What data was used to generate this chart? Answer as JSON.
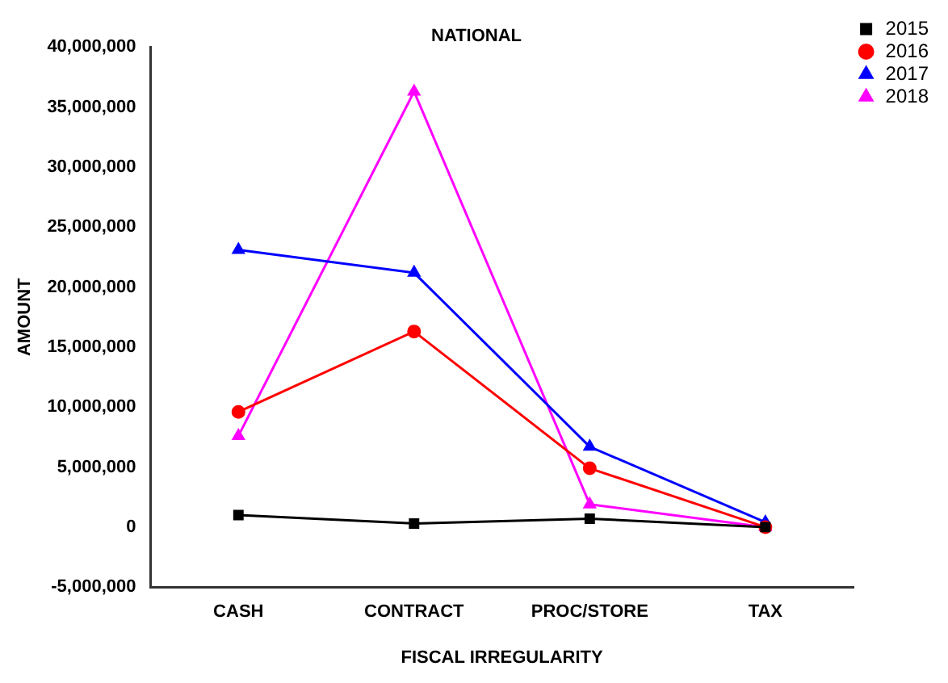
{
  "chart_data": {
    "type": "line",
    "title": "NATIONAL",
    "xlabel": "FISCAL IRREGULARITY",
    "ylabel": "AMOUNT",
    "categories": [
      "CASH",
      "CONTRACT",
      "PROC/STORE",
      "TAX"
    ],
    "series": [
      {
        "name": "2015",
        "color": "#000000",
        "marker": "square",
        "values": [
          1000000,
          300000,
          700000,
          0
        ]
      },
      {
        "name": "2016",
        "color": "#ff0000",
        "marker": "circle",
        "values": [
          9600000,
          16300000,
          4900000,
          0
        ]
      },
      {
        "name": "2017",
        "color": "#0000ff",
        "marker": "triangle",
        "values": [
          23100000,
          21200000,
          6700000,
          400000
        ]
      },
      {
        "name": "2018",
        "color": "#ff00ff",
        "marker": "triangle",
        "values": [
          7600000,
          36300000,
          1900000,
          0
        ]
      }
    ],
    "ylim": [
      -5000000,
      40000000
    ],
    "yticks": [
      {
        "value": -5000000,
        "label": "-5,000,000"
      },
      {
        "value": 0,
        "label": "0"
      },
      {
        "value": 5000000,
        "label": "5,000,000"
      },
      {
        "value": 10000000,
        "label": "10,000,000"
      },
      {
        "value": 15000000,
        "label": "15,000,000"
      },
      {
        "value": 20000000,
        "label": "20,000,000"
      },
      {
        "value": 25000000,
        "label": "25,000,000"
      },
      {
        "value": 30000000,
        "label": "30,000,000"
      },
      {
        "value": 35000000,
        "label": "35,000,000"
      },
      {
        "value": 40000000,
        "label": "40,000,000"
      }
    ],
    "grid": false,
    "legend": "top right",
    "line_style": "solid"
  }
}
